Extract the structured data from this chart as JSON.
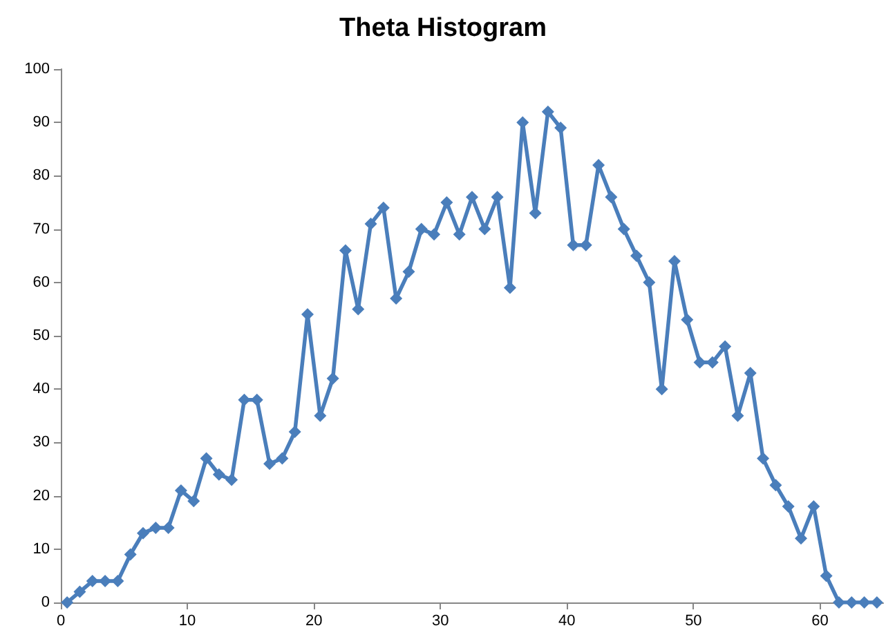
{
  "chart_data": {
    "type": "line",
    "title": "Theta Histogram",
    "x": [
      0.5,
      1.5,
      2.5,
      3.5,
      4.5,
      5.5,
      6.5,
      7.5,
      8.5,
      9.5,
      10.5,
      11.5,
      12.5,
      13.5,
      14.5,
      15.5,
      16.5,
      17.5,
      18.5,
      19.5,
      20.5,
      21.5,
      22.5,
      23.5,
      24.5,
      25.5,
      26.5,
      27.5,
      28.5,
      29.5,
      30.5,
      31.5,
      32.5,
      33.5,
      34.5,
      35.5,
      36.5,
      37.5,
      38.5,
      39.5,
      40.5,
      41.5,
      42.5,
      43.5,
      44.5,
      45.5,
      46.5,
      47.5,
      48.5,
      49.5,
      50.5,
      51.5,
      52.5,
      53.5,
      54.5,
      55.5,
      56.5,
      57.5,
      58.5,
      59.5,
      60.5,
      61.5,
      62.5,
      63.5,
      64.5
    ],
    "series": [
      {
        "color": "#4a7ebb",
        "values": [
          0,
          2,
          4,
          4,
          4,
          9,
          13,
          14,
          14,
          21,
          19,
          27,
          24,
          23,
          38,
          38,
          26,
          27,
          32,
          54,
          35,
          42,
          66,
          55,
          71,
          74,
          57,
          62,
          70,
          69,
          75,
          69,
          76,
          70,
          76,
          59,
          90,
          73,
          92,
          89,
          67,
          67,
          82,
          76,
          70,
          65,
          60,
          40,
          64,
          53,
          45,
          45,
          48,
          35,
          43,
          27,
          22,
          18,
          12,
          18,
          5,
          0,
          0,
          0,
          0
        ]
      }
    ],
    "xlim": [
      0,
      65
    ],
    "xticks": [
      0,
      10,
      20,
      30,
      40,
      50,
      60
    ],
    "ylim": [
      0,
      100
    ],
    "yticks": [
      0,
      10,
      20,
      30,
      40,
      50,
      60,
      70,
      80,
      90,
      100
    ],
    "grid": false,
    "marker": "diamond",
    "line_style": "solid"
  }
}
